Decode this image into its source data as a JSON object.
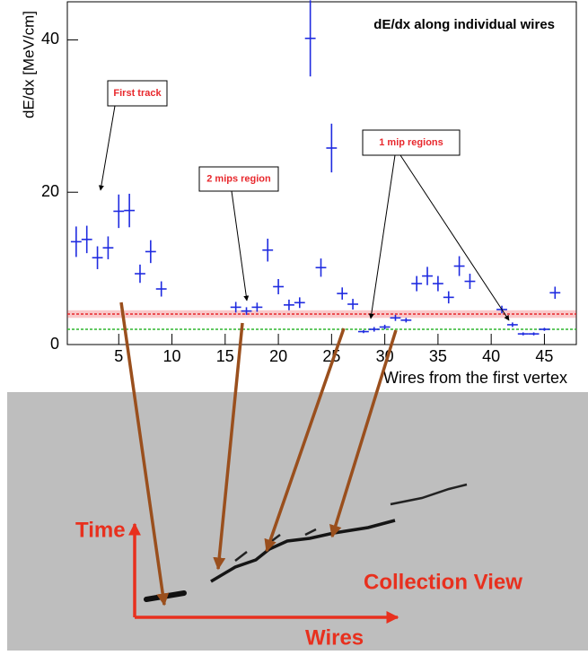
{
  "chart_data": {
    "type": "scatter",
    "title": "dE/dx along individual wires",
    "x_label": "Wires from the first vertex",
    "y_label": "dE/dx [MeV/cm]",
    "x": [
      1,
      2,
      3,
      4,
      5,
      6,
      7,
      8,
      9,
      16,
      17,
      18,
      19,
      20,
      21,
      22,
      23,
      24,
      25,
      26,
      27,
      28,
      29,
      30,
      31,
      32,
      33,
      34,
      35,
      36,
      37,
      38,
      41,
      42,
      43,
      44,
      45,
      46
    ],
    "values": [
      13.5,
      13.8,
      11.4,
      12.7,
      17.5,
      17.6,
      9.3,
      12.2,
      7.3,
      4.9,
      4.4,
      4.9,
      12.4,
      7.6,
      5.2,
      5.5,
      40.2,
      10.1,
      25.8,
      6.7,
      5.3,
      1.7,
      2.0,
      2.3,
      3.5,
      3.2,
      8.0,
      9.0,
      8.0,
      6.2,
      10.3,
      8.3,
      4.6,
      2.6,
      1.4,
      1.4,
      2.0,
      6.8
    ],
    "errors": [
      2.0,
      1.8,
      1.5,
      1.5,
      2.2,
      2.2,
      1.2,
      1.5,
      1.0,
      0.7,
      0.5,
      0.6,
      1.5,
      1.0,
      0.7,
      0.7,
      5.0,
      1.2,
      3.2,
      0.8,
      0.7,
      0.2,
      0.3,
      0.3,
      0.4,
      0.3,
      1.0,
      1.2,
      1.0,
      0.8,
      1.3,
      1.0,
      0.5,
      0.3,
      0.2,
      0.2,
      0.2,
      0.8
    ],
    "color": "#1f2be0",
    "reference_lines": [
      {
        "value": 4.0,
        "band": 0.5,
        "color": "#e8282d"
      },
      {
        "value": 2.0,
        "color": "#2fb52f"
      }
    ],
    "annotations": [
      "First track",
      "2 mips region",
      "1 mip regions"
    ],
    "xlim": [
      0,
      48
    ],
    "ylim": [
      0,
      45
    ],
    "xticks": [
      5,
      10,
      15,
      20,
      25,
      30,
      35,
      40,
      45
    ],
    "yticks": [
      0,
      20,
      40
    ]
  },
  "image": {
    "labels": [
      "Time",
      "Collection View",
      "Wires"
    ]
  }
}
